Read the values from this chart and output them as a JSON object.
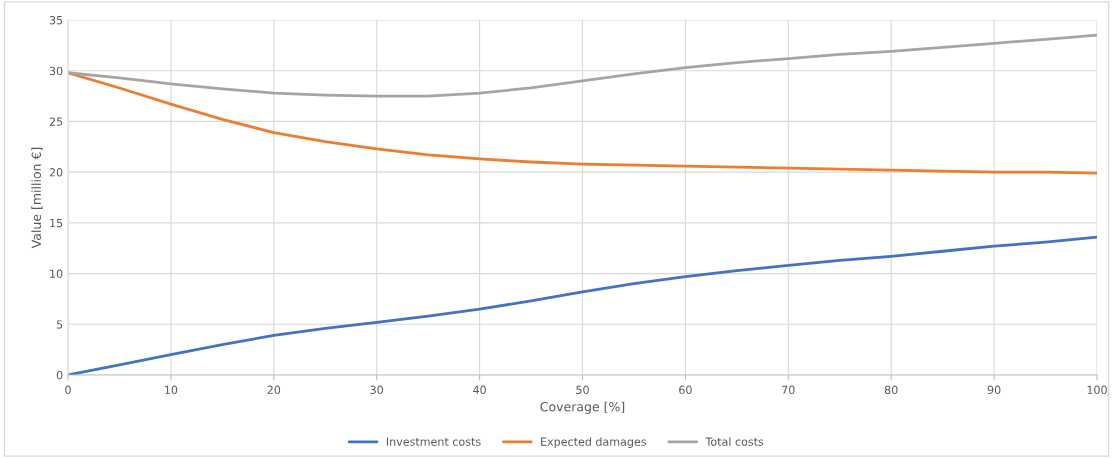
{
  "chart_data": {
    "type": "line",
    "xlabel": "Coverage [%]",
    "ylabel": "Value [million €]",
    "x": [
      0,
      5,
      10,
      15,
      20,
      25,
      30,
      35,
      40,
      45,
      50,
      55,
      60,
      65,
      70,
      75,
      80,
      85,
      90,
      95,
      100
    ],
    "series": [
      {
        "name": "Investment costs",
        "color": "#4472c4",
        "values": [
          0,
          1.0,
          2.0,
          3.0,
          3.9,
          4.6,
          5.2,
          5.8,
          6.5,
          7.3,
          8.2,
          9.0,
          9.7,
          10.3,
          10.8,
          11.3,
          11.7,
          12.2,
          12.7,
          13.1,
          13.6
        ]
      },
      {
        "name": "Expected damages",
        "color": "#ed7d31",
        "values": [
          29.8,
          28.3,
          26.7,
          25.2,
          23.9,
          23.0,
          22.3,
          21.7,
          21.3,
          21.0,
          20.8,
          20.7,
          20.6,
          20.5,
          20.4,
          20.3,
          20.2,
          20.1,
          20.0,
          20.0,
          19.9
        ]
      },
      {
        "name": "Total costs",
        "color": "#a5a5a5",
        "values": [
          29.8,
          29.3,
          28.7,
          28.2,
          27.8,
          27.6,
          27.5,
          27.5,
          27.8,
          28.3,
          29.0,
          29.7,
          30.3,
          30.8,
          31.2,
          31.6,
          31.9,
          32.3,
          32.7,
          33.1,
          33.5
        ]
      }
    ],
    "xlim": [
      0,
      100
    ],
    "xticks": [
      0,
      10,
      20,
      30,
      40,
      50,
      60,
      70,
      80,
      90,
      100
    ],
    "ylim": [
      0,
      35
    ],
    "yticks": [
      0,
      5,
      10,
      15,
      20,
      25,
      30,
      35
    ],
    "grid": true,
    "legend": "bottom",
    "marker": "none",
    "line_style": "solid"
  }
}
